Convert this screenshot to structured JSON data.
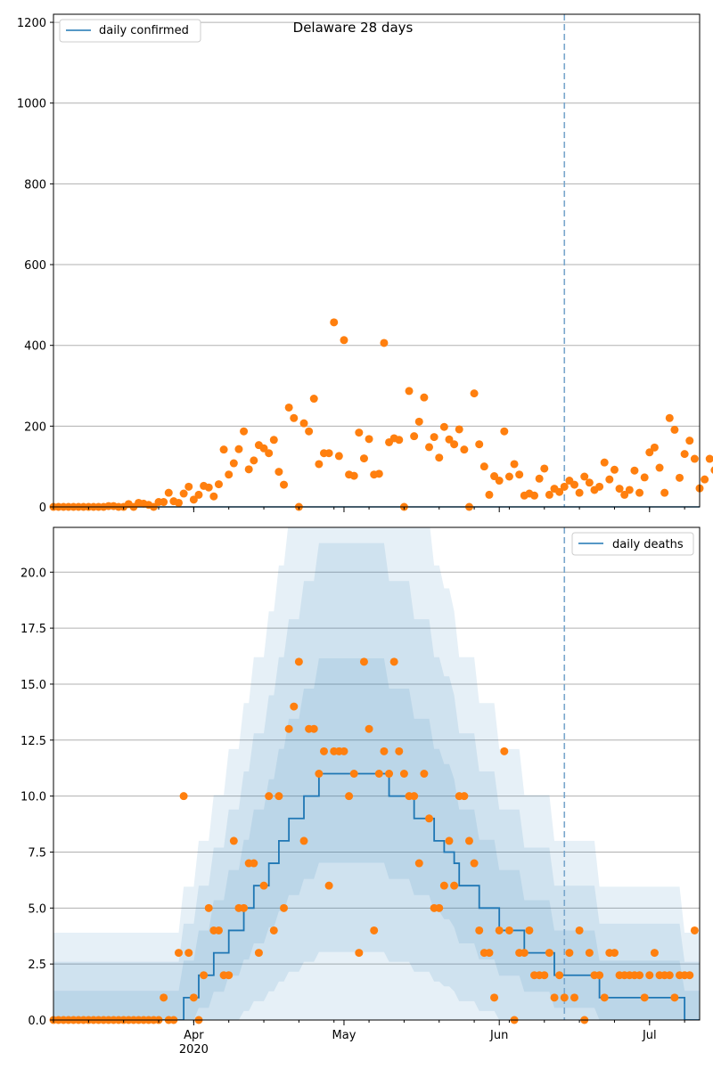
{
  "chart_data": [
    {
      "type": "scatter",
      "title": "Delaware 28 days",
      "ylim": [
        0,
        1220
      ],
      "yticks": [
        0,
        200,
        400,
        600,
        800,
        1000,
        1200
      ],
      "ytick_labels": [
        "0",
        "200",
        "400",
        "600",
        "800",
        "1000",
        "1200"
      ],
      "grid": "y",
      "legend_position": "top-left",
      "legend": [
        "daily confirmed"
      ],
      "vline": {
        "x": 102,
        "style": "dashed"
      },
      "series": [
        {
          "name": "daily confirmed",
          "kind": "line",
          "values": [
            0,
            0
          ]
        },
        {
          "kind": "points",
          "x_start": 0,
          "values": [
            0,
            0,
            0,
            0,
            0,
            0,
            0,
            0,
            0,
            0,
            0,
            2,
            2,
            0,
            0,
            7,
            0,
            10,
            8,
            5,
            0,
            12,
            12,
            35,
            14,
            10,
            33,
            50,
            18,
            30,
            52,
            48,
            26,
            56,
            142,
            80,
            108,
            143,
            187,
            93,
            115,
            153,
            145,
            133,
            166,
            87,
            55,
            246,
            220,
            0,
            207,
            187,
            268,
            106,
            133,
            133,
            457,
            126,
            413,
            80,
            77,
            184,
            120,
            168,
            80,
            82,
            406,
            160,
            170,
            166,
            0,
            287,
            175,
            211,
            271,
            148,
            173,
            122,
            198,
            167,
            155,
            192,
            142,
            0,
            281,
            155,
            100,
            30,
            76,
            65,
            187,
            75,
            106,
            80,
            28,
            33,
            28,
            70,
            95,
            30,
            45,
            37,
            50,
            65,
            55,
            35,
            75,
            60,
            42,
            50,
            110,
            68,
            92,
            45,
            30,
            42,
            90,
            35,
            73,
            135,
            147,
            97,
            35,
            220,
            191,
            72,
            131,
            164,
            119,
            46,
            68,
            119,
            91,
            60
          ]
        }
      ]
    },
    {
      "type": "line",
      "ylim": [
        0,
        22
      ],
      "yticks": [
        0,
        2.5,
        5,
        7.5,
        10,
        12.5,
        15,
        17.5,
        20
      ],
      "ytick_labels": [
        "0.0",
        "2.5",
        "5.0",
        "7.5",
        "10.0",
        "12.5",
        "15.0",
        "17.5",
        "20.0"
      ],
      "x_range": [
        0,
        129
      ],
      "xticks": [
        {
          "x": 28,
          "label": "Apr",
          "sublabel": "2020"
        },
        {
          "x": 58,
          "label": "May"
        },
        {
          "x": 89,
          "label": "Jun"
        },
        {
          "x": 119,
          "label": "Jul"
        }
      ],
      "grid": "y",
      "legend_position": "top-right",
      "legend": [
        "daily deaths"
      ],
      "vline": {
        "x": 102,
        "style": "dashed"
      },
      "series": [
        {
          "name": "daily deaths",
          "kind": "line",
          "values": [
            0,
            0,
            0,
            0,
            0,
            0,
            0,
            0,
            0,
            0,
            0,
            0,
            0,
            0,
            0,
            0,
            0,
            0,
            0,
            0,
            0,
            0,
            0,
            0,
            0,
            0,
            1,
            1,
            1,
            2,
            2,
            2,
            3,
            3,
            3,
            4,
            4,
            4,
            5,
            5,
            6,
            6,
            6,
            7,
            7,
            8,
            8,
            9,
            9,
            9,
            10,
            10,
            10,
            11,
            11,
            11,
            11,
            11,
            11,
            11,
            11,
            11,
            11,
            11,
            11,
            11,
            11,
            10,
            10,
            10,
            10,
            10,
            9,
            9,
            9,
            9,
            8,
            8,
            7.5,
            7.5,
            7,
            6,
            6,
            6,
            6,
            5,
            5,
            5,
            5,
            4,
            4,
            4,
            4,
            4,
            3,
            3,
            3,
            3,
            3,
            3,
            2,
            2,
            2,
            2,
            2,
            2,
            2,
            2,
            2,
            1,
            1,
            1,
            1,
            1,
            1,
            1,
            1,
            1,
            1,
            1,
            1,
            1,
            1,
            1,
            1,
            1,
            0,
            0,
            0,
            0
          ],
          "bands": [
            {
              "lower": -3,
              "upper": 3
            },
            {
              "lower": -2,
              "upper": 2
            },
            {
              "lower": -1,
              "upper": 1
            }
          ]
        },
        {
          "kind": "points",
          "x_start": 0,
          "values": [
            0,
            0,
            0,
            0,
            0,
            0,
            0,
            0,
            0,
            0,
            0,
            0,
            0,
            0,
            0,
            0,
            0,
            0,
            0,
            0,
            0,
            0,
            1,
            0,
            0,
            3,
            10,
            3,
            1,
            0,
            2,
            5,
            4,
            4,
            2,
            2,
            8,
            5,
            5,
            7,
            7,
            3,
            6,
            10,
            4,
            10,
            5,
            13,
            14,
            16,
            8,
            13,
            13,
            11,
            12,
            6,
            12,
            12,
            12,
            10,
            11,
            3,
            16,
            13,
            4,
            11,
            12,
            11,
            16,
            12,
            11,
            10,
            10,
            7,
            11,
            9,
            5,
            5,
            6,
            8,
            6,
            10,
            10,
            8,
            7,
            4,
            3,
            3,
            1,
            4,
            12,
            4,
            0,
            3,
            3,
            4,
            2,
            2,
            2,
            3,
            1,
            2,
            1,
            3,
            1,
            4,
            0,
            3,
            2,
            2,
            1,
            3,
            3,
            2,
            2,
            2,
            2,
            2,
            1,
            2,
            3,
            2,
            2,
            2,
            1,
            2,
            2,
            2,
            4
          ]
        }
      ]
    }
  ]
}
